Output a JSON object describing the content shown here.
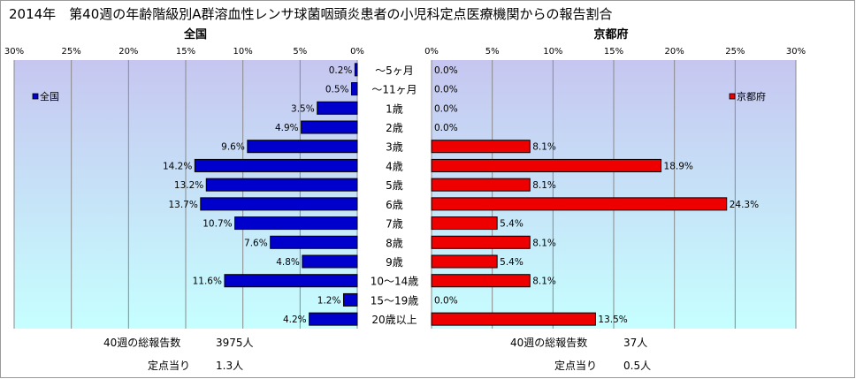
{
  "title": "2014年　第40週の年齢階級別A群溶血性レンサ球菌咽頭炎患者の小児科定点医療機関からの報告割合",
  "categories": [
    "～5ヶ月",
    "～11ヶ月",
    "1歳",
    "2歳",
    "3歳",
    "4歳",
    "5歳",
    "6歳",
    "7歳",
    "8歳",
    "9歳",
    "10～14歳",
    "15～19歳",
    "20歳以上"
  ],
  "colors": {
    "national_bar": "#0000cc",
    "kyoto_bar": "#ee0000",
    "plot_top": "#c6c6f0",
    "plot_bottom": "#c6ffff"
  },
  "chart_data": [
    {
      "type": "bar",
      "orientation": "horizontal",
      "direction": "right-to-left",
      "title": "全国",
      "categories": [
        "～5ヶ月",
        "～11ヶ月",
        "1歳",
        "2歳",
        "3歳",
        "4歳",
        "5歳",
        "6歳",
        "7歳",
        "8歳",
        "9歳",
        "10～14歳",
        "15～19歳",
        "20歳以上"
      ],
      "series": [
        {
          "name": "全国",
          "values": [
            0.2,
            0.5,
            3.5,
            4.9,
            9.6,
            14.2,
            13.2,
            13.7,
            10.7,
            7.6,
            4.8,
            11.6,
            1.2,
            4.2
          ]
        }
      ],
      "data_labels": [
        "0.2%",
        "0.5%",
        "3.5%",
        "4.9%",
        "9.6%",
        "14.2%",
        "13.2%",
        "13.7%",
        "10.7%",
        "7.6%",
        "4.8%",
        "11.6%",
        "1.2%",
        "4.2%"
      ],
      "xlim": [
        0,
        30
      ],
      "xticks": [
        "30%",
        "25%",
        "20%",
        "15%",
        "10%",
        "5%",
        "0%"
      ],
      "legend": "top-left",
      "grid": true
    },
    {
      "type": "bar",
      "orientation": "horizontal",
      "direction": "left-to-right",
      "title": "京都府",
      "categories": [
        "～5ヶ月",
        "～11ヶ月",
        "1歳",
        "2歳",
        "3歳",
        "4歳",
        "5歳",
        "6歳",
        "7歳",
        "8歳",
        "9歳",
        "10～14歳",
        "15～19歳",
        "20歳以上"
      ],
      "series": [
        {
          "name": "京都府",
          "values": [
            0.0,
            0.0,
            0.0,
            0.0,
            8.1,
            18.9,
            8.1,
            24.3,
            5.4,
            8.1,
            5.4,
            8.1,
            0.0,
            13.5
          ]
        }
      ],
      "data_labels": [
        "0.0%",
        "0.0%",
        "0.0%",
        "0.0%",
        "8.1%",
        "18.9%",
        "8.1%",
        "24.3%",
        "5.4%",
        "8.1%",
        "5.4%",
        "8.1%",
        "0.0%",
        "13.5%"
      ],
      "xlim": [
        0,
        30
      ],
      "xticks": [
        "0%",
        "5%",
        "10%",
        "15%",
        "20%",
        "25%",
        "30%"
      ],
      "legend": "top-right",
      "grid": true
    }
  ],
  "summary": {
    "national": {
      "total_label": "40週の総報告数",
      "total_value": "3975人",
      "per_label": "定点当り",
      "per_value": "1.3人"
    },
    "kyoto": {
      "total_label": "40週の総報告数",
      "total_value": "37人",
      "per_label": "定点当り",
      "per_value": "0.5人"
    }
  }
}
